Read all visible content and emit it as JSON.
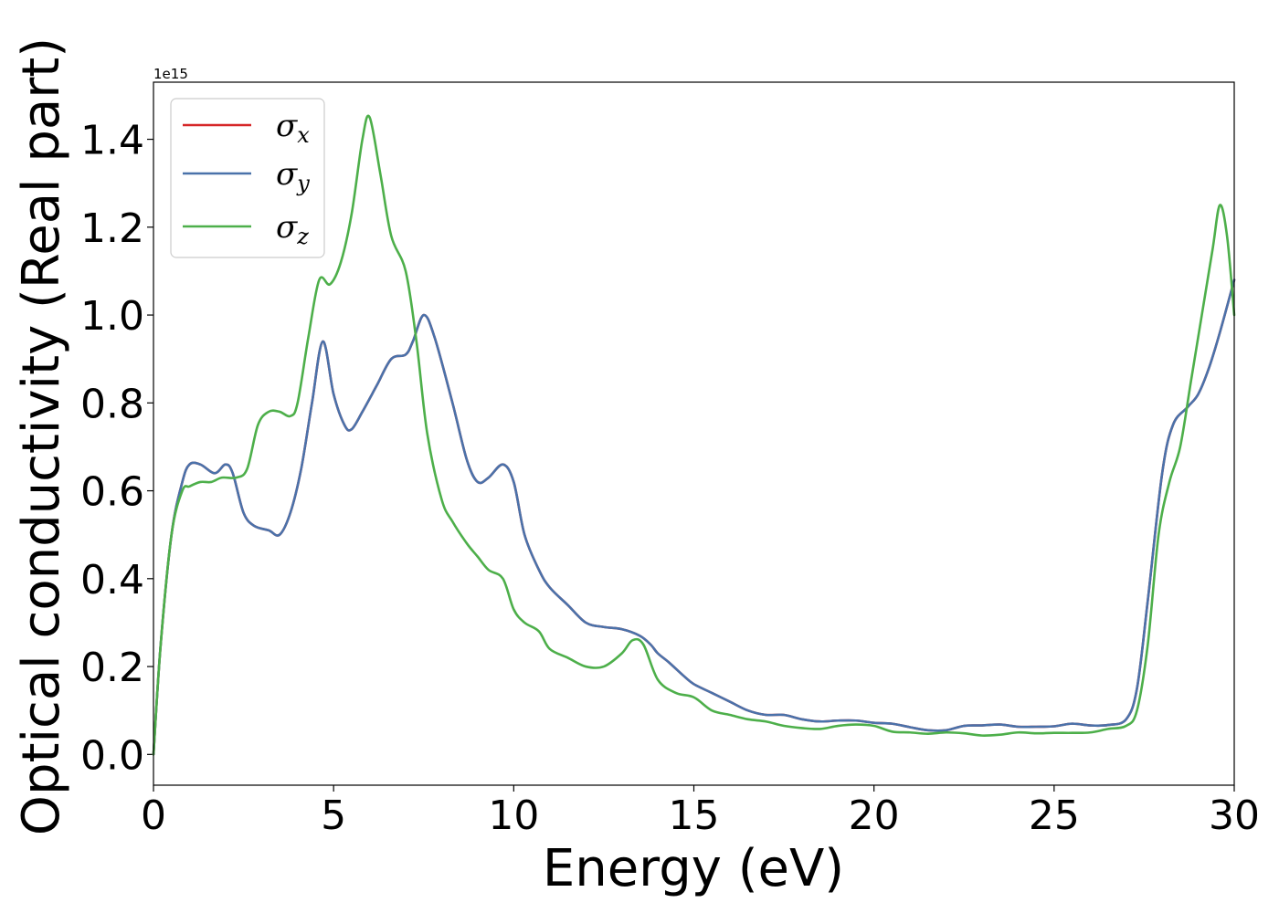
{
  "chart_data": {
    "type": "line",
    "title": "",
    "xlabel": "Energy (eV)",
    "ylabel": "Optical conductivity (Real part)",
    "y_offset_label": "1e15",
    "xlim": [
      0,
      30
    ],
    "ylim": [
      -0.07,
      1.53
    ],
    "x_ticks": [
      0,
      5,
      10,
      15,
      20,
      25,
      30
    ],
    "x_tick_labels": [
      "0",
      "5",
      "10",
      "15",
      "20",
      "25",
      "30"
    ],
    "y_ticks": [
      0.0,
      0.2,
      0.4,
      0.6,
      0.8,
      1.0,
      1.2,
      1.4
    ],
    "y_tick_labels": [
      "0.0",
      "0.2",
      "0.4",
      "0.6",
      "0.8",
      "1.0",
      "1.2",
      "1.4"
    ],
    "grid": false,
    "legend_position": "upper-left",
    "series": [
      {
        "name": "σx",
        "legend_symbol": "σ",
        "legend_sub": "x",
        "color": "#d62728",
        "x": [
          0,
          0.2,
          0.5,
          0.8,
          1.0,
          1.3,
          1.7,
          2.0,
          2.2,
          2.5,
          2.8,
          3.2,
          3.5,
          3.8,
          4.1,
          4.4,
          4.7,
          5.0,
          5.3,
          5.5,
          5.8,
          6.2,
          6.6,
          7.0,
          7.2,
          7.5,
          7.8,
          8.3,
          8.7,
          9.0,
          9.3,
          9.7,
          10.0,
          10.3,
          10.7,
          11.0,
          11.5,
          12.0,
          12.5,
          13.0,
          13.5,
          13.8,
          14.0,
          14.3,
          14.7,
          15.0,
          15.5,
          16.0,
          16.5,
          17.0,
          17.5,
          18.0,
          18.5,
          19.0,
          19.5,
          20.0,
          20.5,
          21.0,
          21.5,
          22.0,
          22.5,
          23.0,
          23.5,
          24.0,
          24.5,
          25.0,
          25.5,
          26.0,
          26.5,
          27.0,
          27.3,
          27.6,
          28.0,
          28.3,
          28.7,
          29.0,
          29.3,
          29.6,
          30.0
        ],
        "y": [
          0.0,
          0.25,
          0.5,
          0.62,
          0.66,
          0.66,
          0.64,
          0.66,
          0.64,
          0.55,
          0.52,
          0.51,
          0.5,
          0.55,
          0.65,
          0.8,
          0.94,
          0.82,
          0.75,
          0.74,
          0.78,
          0.84,
          0.9,
          0.91,
          0.94,
          1.0,
          0.95,
          0.8,
          0.67,
          0.62,
          0.63,
          0.66,
          0.62,
          0.5,
          0.42,
          0.38,
          0.34,
          0.3,
          0.29,
          0.285,
          0.27,
          0.25,
          0.23,
          0.21,
          0.18,
          0.16,
          0.14,
          0.12,
          0.1,
          0.09,
          0.09,
          0.08,
          0.075,
          0.077,
          0.077,
          0.072,
          0.07,
          0.062,
          0.055,
          0.055,
          0.065,
          0.066,
          0.068,
          0.063,
          0.063,
          0.064,
          0.07,
          0.066,
          0.067,
          0.08,
          0.15,
          0.35,
          0.64,
          0.75,
          0.79,
          0.82,
          0.88,
          0.96,
          1.08
        ]
      },
      {
        "name": "σy",
        "legend_symbol": "σ",
        "legend_sub": "y",
        "color": "#4a72aa",
        "x": [
          0,
          0.2,
          0.5,
          0.8,
          1.0,
          1.3,
          1.7,
          2.0,
          2.2,
          2.5,
          2.8,
          3.2,
          3.5,
          3.8,
          4.1,
          4.4,
          4.7,
          5.0,
          5.3,
          5.5,
          5.8,
          6.2,
          6.6,
          7.0,
          7.2,
          7.5,
          7.8,
          8.3,
          8.7,
          9.0,
          9.3,
          9.7,
          10.0,
          10.3,
          10.7,
          11.0,
          11.5,
          12.0,
          12.5,
          13.0,
          13.5,
          13.8,
          14.0,
          14.3,
          14.7,
          15.0,
          15.5,
          16.0,
          16.5,
          17.0,
          17.5,
          18.0,
          18.5,
          19.0,
          19.5,
          20.0,
          20.5,
          21.0,
          21.5,
          22.0,
          22.5,
          23.0,
          23.5,
          24.0,
          24.5,
          25.0,
          25.5,
          26.0,
          26.5,
          27.0,
          27.3,
          27.6,
          28.0,
          28.3,
          28.7,
          29.0,
          29.3,
          29.6,
          30.0
        ],
        "y": [
          0.0,
          0.25,
          0.5,
          0.62,
          0.66,
          0.66,
          0.64,
          0.66,
          0.64,
          0.55,
          0.52,
          0.51,
          0.5,
          0.55,
          0.65,
          0.8,
          0.94,
          0.82,
          0.75,
          0.74,
          0.78,
          0.84,
          0.9,
          0.91,
          0.94,
          1.0,
          0.95,
          0.8,
          0.67,
          0.62,
          0.63,
          0.66,
          0.62,
          0.5,
          0.42,
          0.38,
          0.34,
          0.3,
          0.29,
          0.285,
          0.27,
          0.25,
          0.23,
          0.21,
          0.18,
          0.16,
          0.14,
          0.12,
          0.1,
          0.09,
          0.09,
          0.08,
          0.075,
          0.077,
          0.077,
          0.072,
          0.07,
          0.062,
          0.055,
          0.055,
          0.065,
          0.066,
          0.068,
          0.063,
          0.063,
          0.064,
          0.07,
          0.066,
          0.067,
          0.08,
          0.15,
          0.35,
          0.64,
          0.75,
          0.79,
          0.82,
          0.88,
          0.96,
          1.08
        ]
      },
      {
        "name": "σz",
        "legend_symbol": "σ",
        "legend_sub": "z",
        "color": "#4daf4a",
        "x": [
          0,
          0.2,
          0.5,
          0.8,
          1.0,
          1.3,
          1.6,
          1.9,
          2.3,
          2.6,
          2.9,
          3.2,
          3.5,
          3.8,
          4.0,
          4.3,
          4.6,
          4.9,
          5.2,
          5.5,
          5.8,
          6.0,
          6.3,
          6.6,
          7.0,
          7.3,
          7.6,
          8.0,
          8.3,
          8.7,
          9.0,
          9.3,
          9.7,
          10.0,
          10.3,
          10.7,
          11.0,
          11.5,
          12.0,
          12.5,
          13.0,
          13.3,
          13.6,
          14.0,
          14.5,
          15.0,
          15.5,
          16.0,
          16.5,
          17.0,
          17.5,
          18.0,
          18.5,
          19.0,
          19.5,
          20.0,
          20.5,
          21.0,
          21.5,
          22.0,
          22.5,
          23.0,
          23.5,
          24.0,
          24.5,
          25.0,
          25.5,
          26.0,
          26.5,
          27.0,
          27.3,
          27.6,
          27.9,
          28.2,
          28.5,
          28.8,
          29.1,
          29.4,
          29.6,
          29.8,
          30.0
        ],
        "y": [
          0.0,
          0.25,
          0.5,
          0.6,
          0.61,
          0.62,
          0.62,
          0.63,
          0.63,
          0.65,
          0.75,
          0.78,
          0.78,
          0.77,
          0.8,
          0.95,
          1.08,
          1.07,
          1.12,
          1.23,
          1.4,
          1.45,
          1.32,
          1.18,
          1.1,
          0.94,
          0.73,
          0.58,
          0.53,
          0.48,
          0.45,
          0.42,
          0.4,
          0.33,
          0.3,
          0.28,
          0.24,
          0.22,
          0.2,
          0.2,
          0.23,
          0.26,
          0.25,
          0.17,
          0.14,
          0.13,
          0.1,
          0.09,
          0.08,
          0.075,
          0.065,
          0.06,
          0.058,
          0.065,
          0.068,
          0.065,
          0.052,
          0.05,
          0.047,
          0.05,
          0.048,
          0.043,
          0.045,
          0.05,
          0.048,
          0.049,
          0.049,
          0.05,
          0.058,
          0.065,
          0.1,
          0.25,
          0.5,
          0.62,
          0.7,
          0.85,
          1.0,
          1.15,
          1.25,
          1.18,
          1.0
        ]
      }
    ]
  }
}
